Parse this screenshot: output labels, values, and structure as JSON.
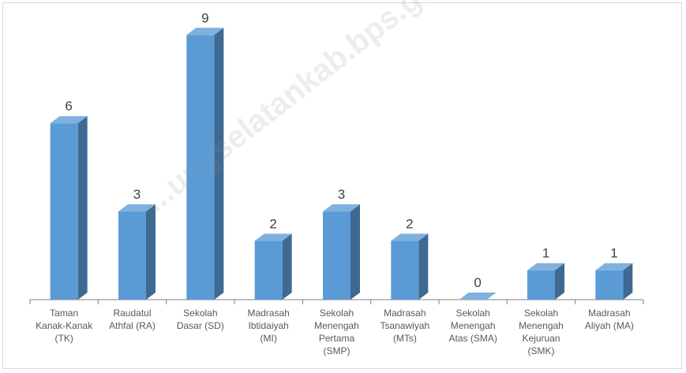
{
  "chart_data": {
    "type": "bar",
    "title": "",
    "xlabel": "",
    "ylabel": "",
    "ylim": [
      0,
      9.5
    ],
    "grid": false,
    "legend": "none",
    "bar_color": "#5B9BD5",
    "categories": [
      [
        "Taman",
        "Kanak-Kanak",
        "(TK)"
      ],
      [
        "Raudatul",
        "Athfal (RA)"
      ],
      [
        "Sekolah",
        "Dasar (SD)"
      ],
      [
        "Madrasah",
        "Ibtidaiyah",
        "(MI)"
      ],
      [
        "Sekolah",
        "Menengah",
        "Pertama",
        "(SMP)"
      ],
      [
        "Madrasah",
        "Tsanawiyah",
        "(MTs)"
      ],
      [
        "Sekolah",
        "Menengah",
        "Atas (SMA)"
      ],
      [
        "Sekolah",
        "Menengah",
        "Kejuruan",
        "(SMK)"
      ],
      [
        "Madrasah",
        "Aliyah (MA)"
      ]
    ],
    "values": [
      6,
      3,
      9,
      2,
      3,
      2,
      0,
      1,
      1
    ],
    "data_labels": [
      "6",
      "3",
      "9",
      "2",
      "3",
      "2",
      "0",
      "1",
      "1"
    ]
  },
  "watermark": "...ungselatankab.bps.go.id"
}
